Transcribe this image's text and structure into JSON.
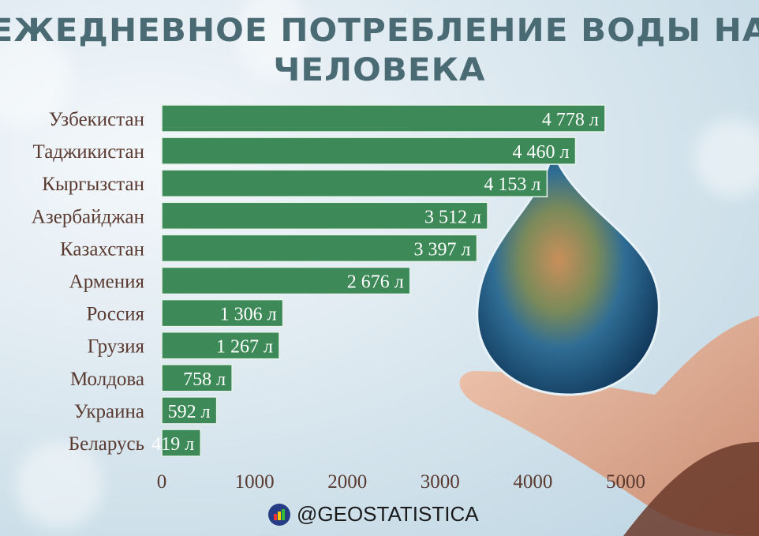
{
  "chart_data": {
    "type": "bar",
    "orientation": "horizontal",
    "title": "ЕЖЕДНЕВНОЕ ПОТРЕБЛЕНИЕ ВОДЫ НА ЧЕЛОВЕКА",
    "categories": [
      "Узбекистан",
      "Таджикистан",
      "Кыргызстан",
      "Азербайджан",
      "Казахстан",
      "Армения",
      "Россия",
      "Грузия",
      "Молдова",
      "Украина",
      "Беларусь"
    ],
    "values": [
      4778,
      4460,
      4153,
      3512,
      3397,
      2676,
      1306,
      1267,
      758,
      592,
      419
    ],
    "data_labels": [
      "4 778 л",
      "4 460 л",
      "4 153 л",
      "3 512 л",
      "3 397 л",
      "2 676 л",
      "1 306 л",
      "1 267 л",
      "758 л",
      "592 л",
      "419 л"
    ],
    "xlim": [
      0,
      5000
    ],
    "xticks": [
      "0",
      "1000",
      "2000",
      "3000",
      "4000",
      "5000"
    ],
    "grid": false,
    "bar_color": "#3d8a58",
    "label_color": "#5a3a30"
  },
  "footer": {
    "handle": "@GEOSTATISTICA"
  }
}
